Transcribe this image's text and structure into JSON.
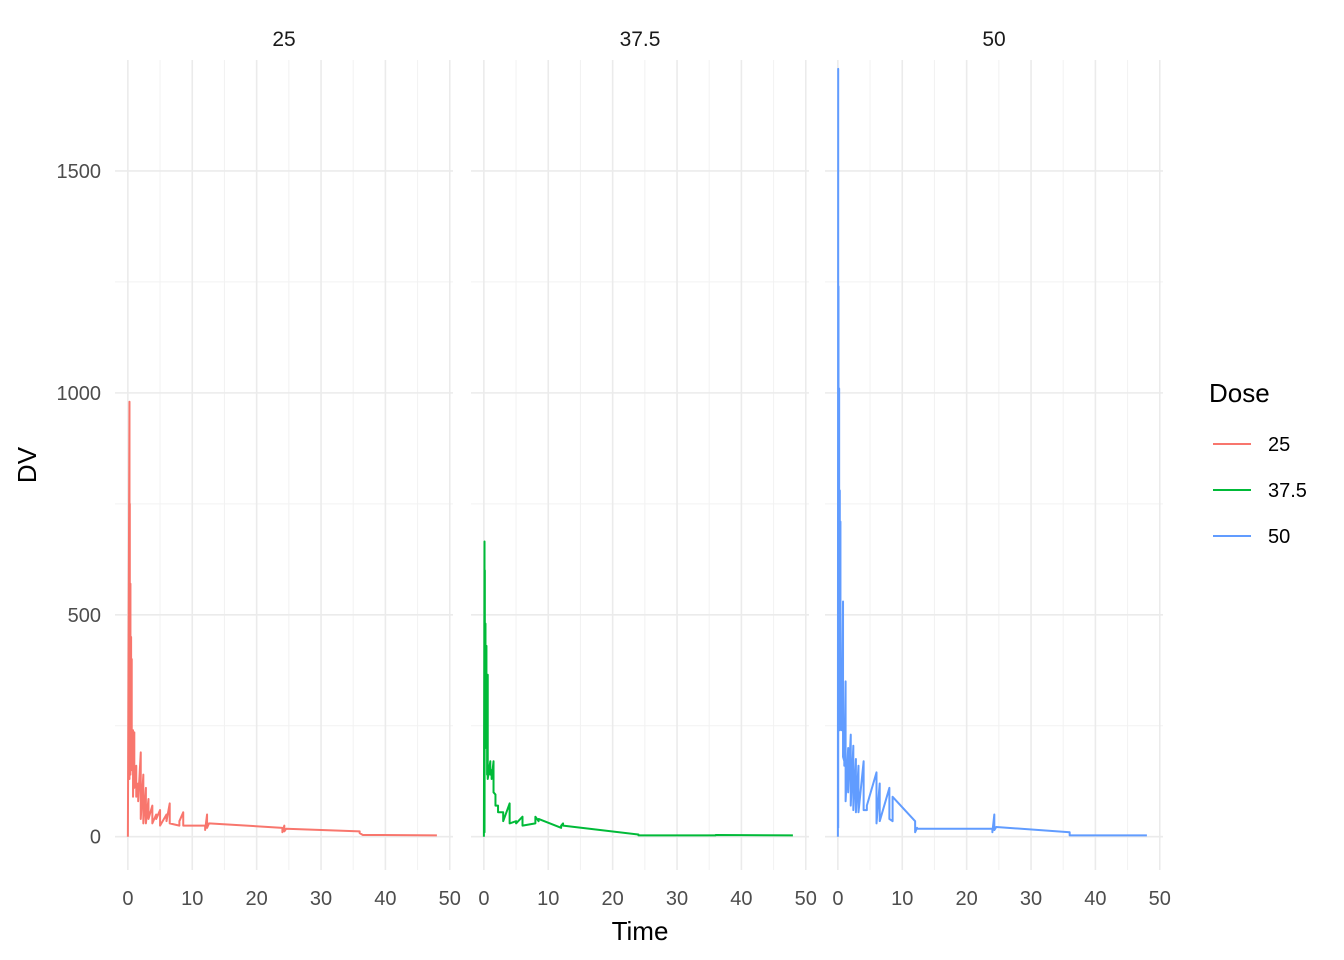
{
  "chart_data": {
    "type": "line",
    "facet_by": "Dose",
    "facets": [
      "25",
      "37.5",
      "50"
    ],
    "xlabel": "Time",
    "ylabel": "DV",
    "xlim": [
      -2,
      50.5
    ],
    "ylim": [
      -75,
      1750
    ],
    "x_ticks": [
      0,
      10,
      20,
      30,
      40,
      50
    ],
    "y_ticks": [
      0,
      500,
      1000,
      1500
    ],
    "grid": true,
    "legend": {
      "title": "Dose",
      "position": "right",
      "entries": [
        "25",
        "37.5",
        "50"
      ]
    },
    "colors": {
      "25": "#F8766D",
      "37.5": "#00BA38",
      "50": "#619CFF"
    },
    "series": [
      {
        "name": "25",
        "x": [
          0,
          0.25,
          0.25,
          0.3,
          0.3,
          0.4,
          0.4,
          0.5,
          0.5,
          0.6,
          0.6,
          0.8,
          0.8,
          1,
          1,
          1.3,
          1.3,
          1.6,
          1.6,
          2,
          2,
          2.4,
          2.4,
          2.8,
          2.8,
          3.2,
          3.2,
          3.8,
          3.8,
          4.4,
          4.4,
          5,
          5,
          6,
          6,
          6.5,
          6.5,
          8,
          8,
          8.6,
          8.6,
          12,
          12,
          12.3,
          12.3,
          12.6,
          24,
          24,
          24.3,
          24.3,
          24.6,
          36,
          36,
          36.5,
          48
        ],
        "y": [
          0,
          980,
          130,
          750,
          200,
          570,
          140,
          450,
          180,
          400,
          150,
          240,
          90,
          235,
          110,
          160,
          90,
          120,
          80,
          190,
          40,
          140,
          30,
          110,
          30,
          85,
          40,
          70,
          30,
          50,
          40,
          60,
          25,
          50,
          35,
          75,
          30,
          25,
          35,
          55,
          25,
          25,
          15,
          50,
          20,
          30,
          20,
          10,
          25,
          12,
          18,
          12,
          8,
          4,
          3
        ]
      },
      {
        "name": "37.5",
        "x": [
          0,
          0.1,
          0.1,
          0.15,
          0.15,
          0.25,
          0.25,
          0.4,
          0.4,
          0.5,
          0.5,
          0.6,
          0.6,
          1,
          1,
          1.2,
          1.2,
          1.5,
          1.5,
          1.8,
          1.8,
          2.2,
          2.2,
          3,
          3,
          4,
          4,
          5,
          5,
          6,
          6,
          8,
          8,
          8.5,
          8.5,
          12,
          12,
          12.3,
          12.3,
          24,
          24,
          24.5,
          36,
          36,
          48
        ],
        "y": [
          0,
          665,
          10,
          600,
          240,
          480,
          200,
          430,
          230,
          300,
          140,
          365,
          130,
          170,
          140,
          150,
          130,
          170,
          100,
          95,
          70,
          70,
          55,
          55,
          35,
          75,
          30,
          35,
          30,
          45,
          25,
          30,
          45,
          35,
          40,
          20,
          25,
          30,
          25,
          5,
          3,
          3,
          3,
          4,
          3
        ]
      },
      {
        "name": "50",
        "x": [
          0,
          0.05,
          0.05,
          0.1,
          0.1,
          0.2,
          0.2,
          0.3,
          0.3,
          0.4,
          0.4,
          0.5,
          0.5,
          0.6,
          0.6,
          0.8,
          0.8,
          1,
          1,
          1.2,
          1.2,
          1.6,
          1.6,
          2,
          2,
          2.4,
          2.4,
          2.8,
          2.8,
          3.2,
          3.2,
          4,
          4,
          4.5,
          4.5,
          6,
          6,
          6.5,
          6.5,
          8,
          8,
          8.5,
          8.5,
          12,
          12,
          12.3,
          12.3,
          24,
          24,
          24.3,
          24.3,
          24.6,
          36,
          36,
          36.5,
          48
        ],
        "y": [
          0,
          1730,
          20,
          1240,
          300,
          1010,
          260,
          780,
          240,
          710,
          250,
          380,
          280,
          340,
          240,
          530,
          180,
          170,
          160,
          350,
          80,
          200,
          100,
          230,
          70,
          205,
          60,
          175,
          55,
          160,
          55,
          170,
          60,
          60,
          70,
          145,
          30,
          120,
          35,
          110,
          40,
          35,
          90,
          35,
          10,
          20,
          18,
          18,
          10,
          50,
          15,
          22,
          10,
          3,
          3,
          3
        ]
      }
    ]
  }
}
